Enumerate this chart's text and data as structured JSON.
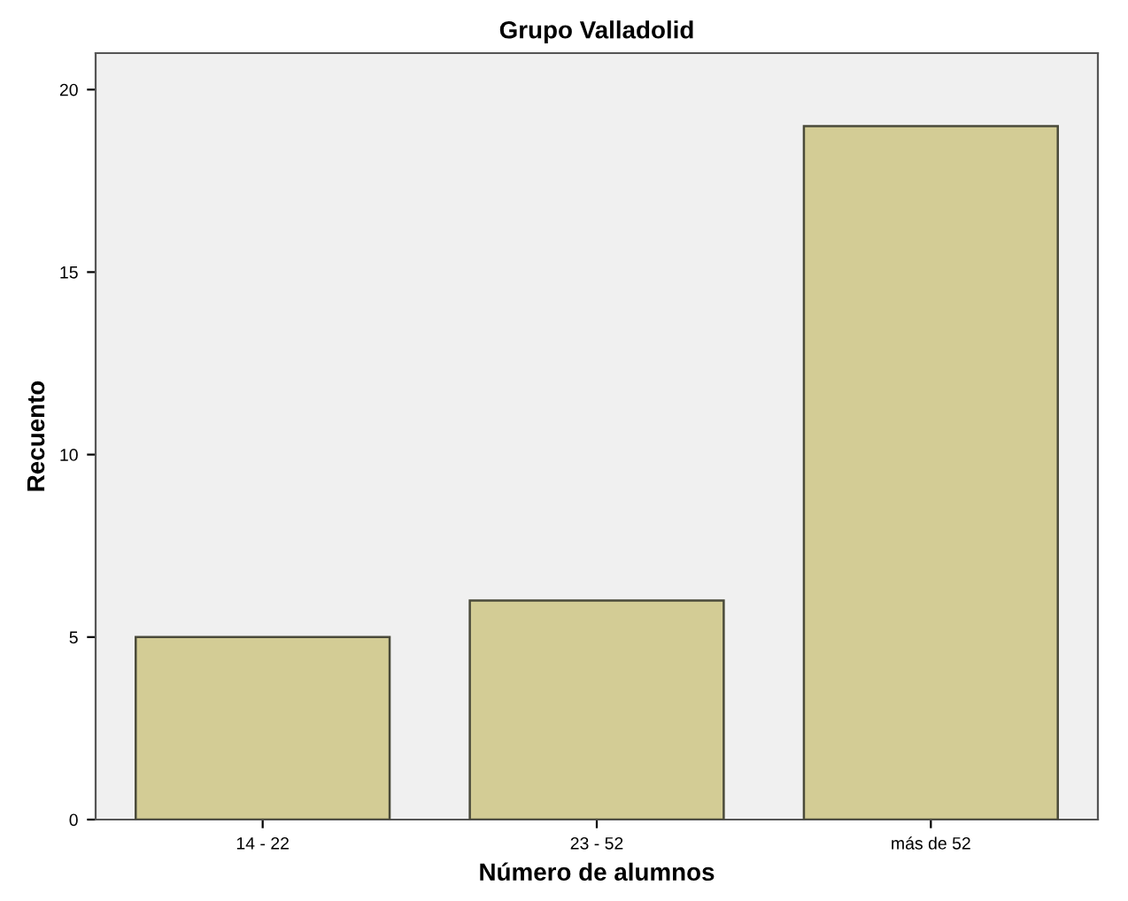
{
  "chart_data": {
    "type": "bar",
    "title": "Grupo Valladolid",
    "xlabel": "Número de alumnos",
    "ylabel": "Recuento",
    "categories": [
      "14 - 22",
      "23 - 52",
      "más de 52"
    ],
    "values": [
      5,
      6,
      19
    ],
    "color": "#d3cc95",
    "ylim": [
      0,
      21
    ],
    "yticks": [
      0,
      5,
      10,
      15,
      20
    ],
    "grid": false
  }
}
